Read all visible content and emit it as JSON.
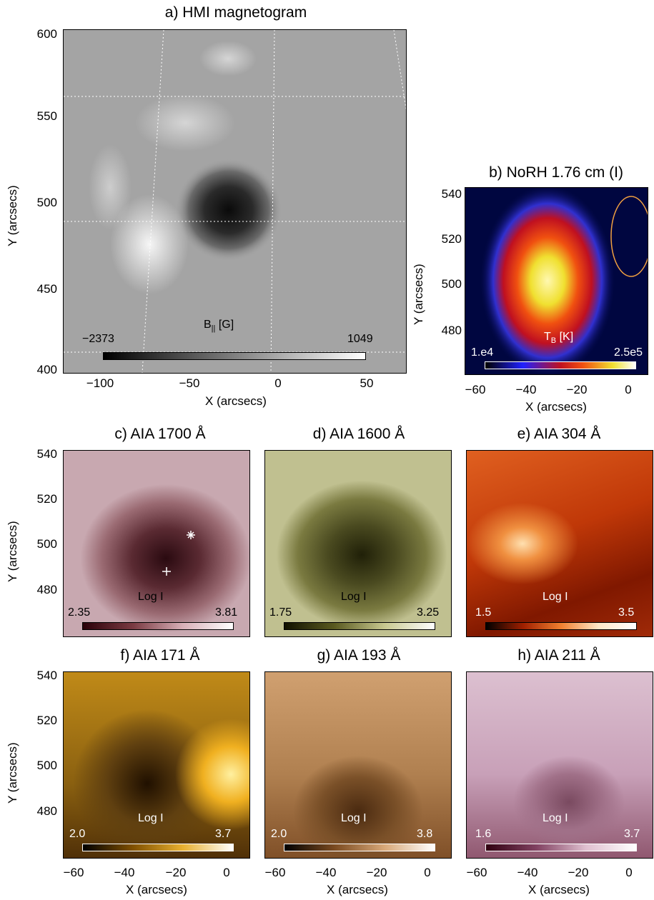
{
  "panels": {
    "a": {
      "title": "a) HMI magnetogram",
      "xlabel": "X (arcsecs)",
      "ylabel": "Y (arcsecs)",
      "xticks": [
        "−100",
        "−50",
        "0",
        "50"
      ],
      "yticks": [
        "600",
        "550",
        "500",
        "450",
        "400"
      ],
      "cbar_label": "B",
      "cbar_sub": "||",
      "cbar_unit": " [G]",
      "cbar_min": "−2373",
      "cbar_max": "1049"
    },
    "b": {
      "title": "b) NoRH 1.76 cm (I)",
      "xlabel": "X (arcsecs)",
      "ylabel": "Y (arcsecs)",
      "xticks": [
        "−60",
        "−40",
        "−20",
        "0"
      ],
      "yticks": [
        "540",
        "520",
        "500",
        "480"
      ],
      "cbar_label": "T",
      "cbar_sub": "B",
      "cbar_unit": " [K]",
      "cbar_min": "1.e4",
      "cbar_max": "2.5e5"
    },
    "c": {
      "title": "c) AIA 1700 Å",
      "cbar_label": "Log I",
      "cbar_min": "2.35",
      "cbar_max": "3.81",
      "ylabel": "Y (arcsecs)",
      "yticks": [
        "540",
        "520",
        "500",
        "480"
      ]
    },
    "d": {
      "title": "d) AIA 1600 Å",
      "cbar_label": "Log I",
      "cbar_min": "1.75",
      "cbar_max": "3.25"
    },
    "e": {
      "title": "e) AIA 304 Å",
      "cbar_label": "Log I",
      "cbar_min": "1.5",
      "cbar_max": "3.5"
    },
    "f": {
      "title": "f) AIA 171 Å",
      "cbar_label": "Log I",
      "cbar_min": "2.0",
      "cbar_max": "3.7",
      "xlabel": "X (arcsecs)",
      "ylabel": "Y (arcsecs)",
      "xticks": [
        "−60",
        "−40",
        "−20",
        "0"
      ],
      "yticks": [
        "540",
        "520",
        "500",
        "480"
      ]
    },
    "g": {
      "title": "g) AIA 193 Å",
      "cbar_label": "Log I",
      "cbar_min": "2.0",
      "cbar_max": "3.8",
      "xlabel": "X (arcsecs)",
      "xticks": [
        "−60",
        "−40",
        "−20",
        "0"
      ]
    },
    "h": {
      "title": "h) AIA 211 Å",
      "cbar_label": "Log I",
      "cbar_min": "1.6",
      "cbar_max": "3.7",
      "xlabel": "X (arcsecs)",
      "xticks": [
        "−60",
        "−40",
        "−20",
        "0"
      ]
    }
  },
  "colors": {
    "hmi_bg": "#a4a4a4",
    "contour": "#f0a040",
    "norh_bg": "#000640",
    "c_bg": "#9a6a72",
    "d_bg": "#7a7a40",
    "e_bg": "#c04010",
    "f_bg": "#a07010",
    "g_bg": "#b08050",
    "h_bg": "#c8a0b8"
  }
}
